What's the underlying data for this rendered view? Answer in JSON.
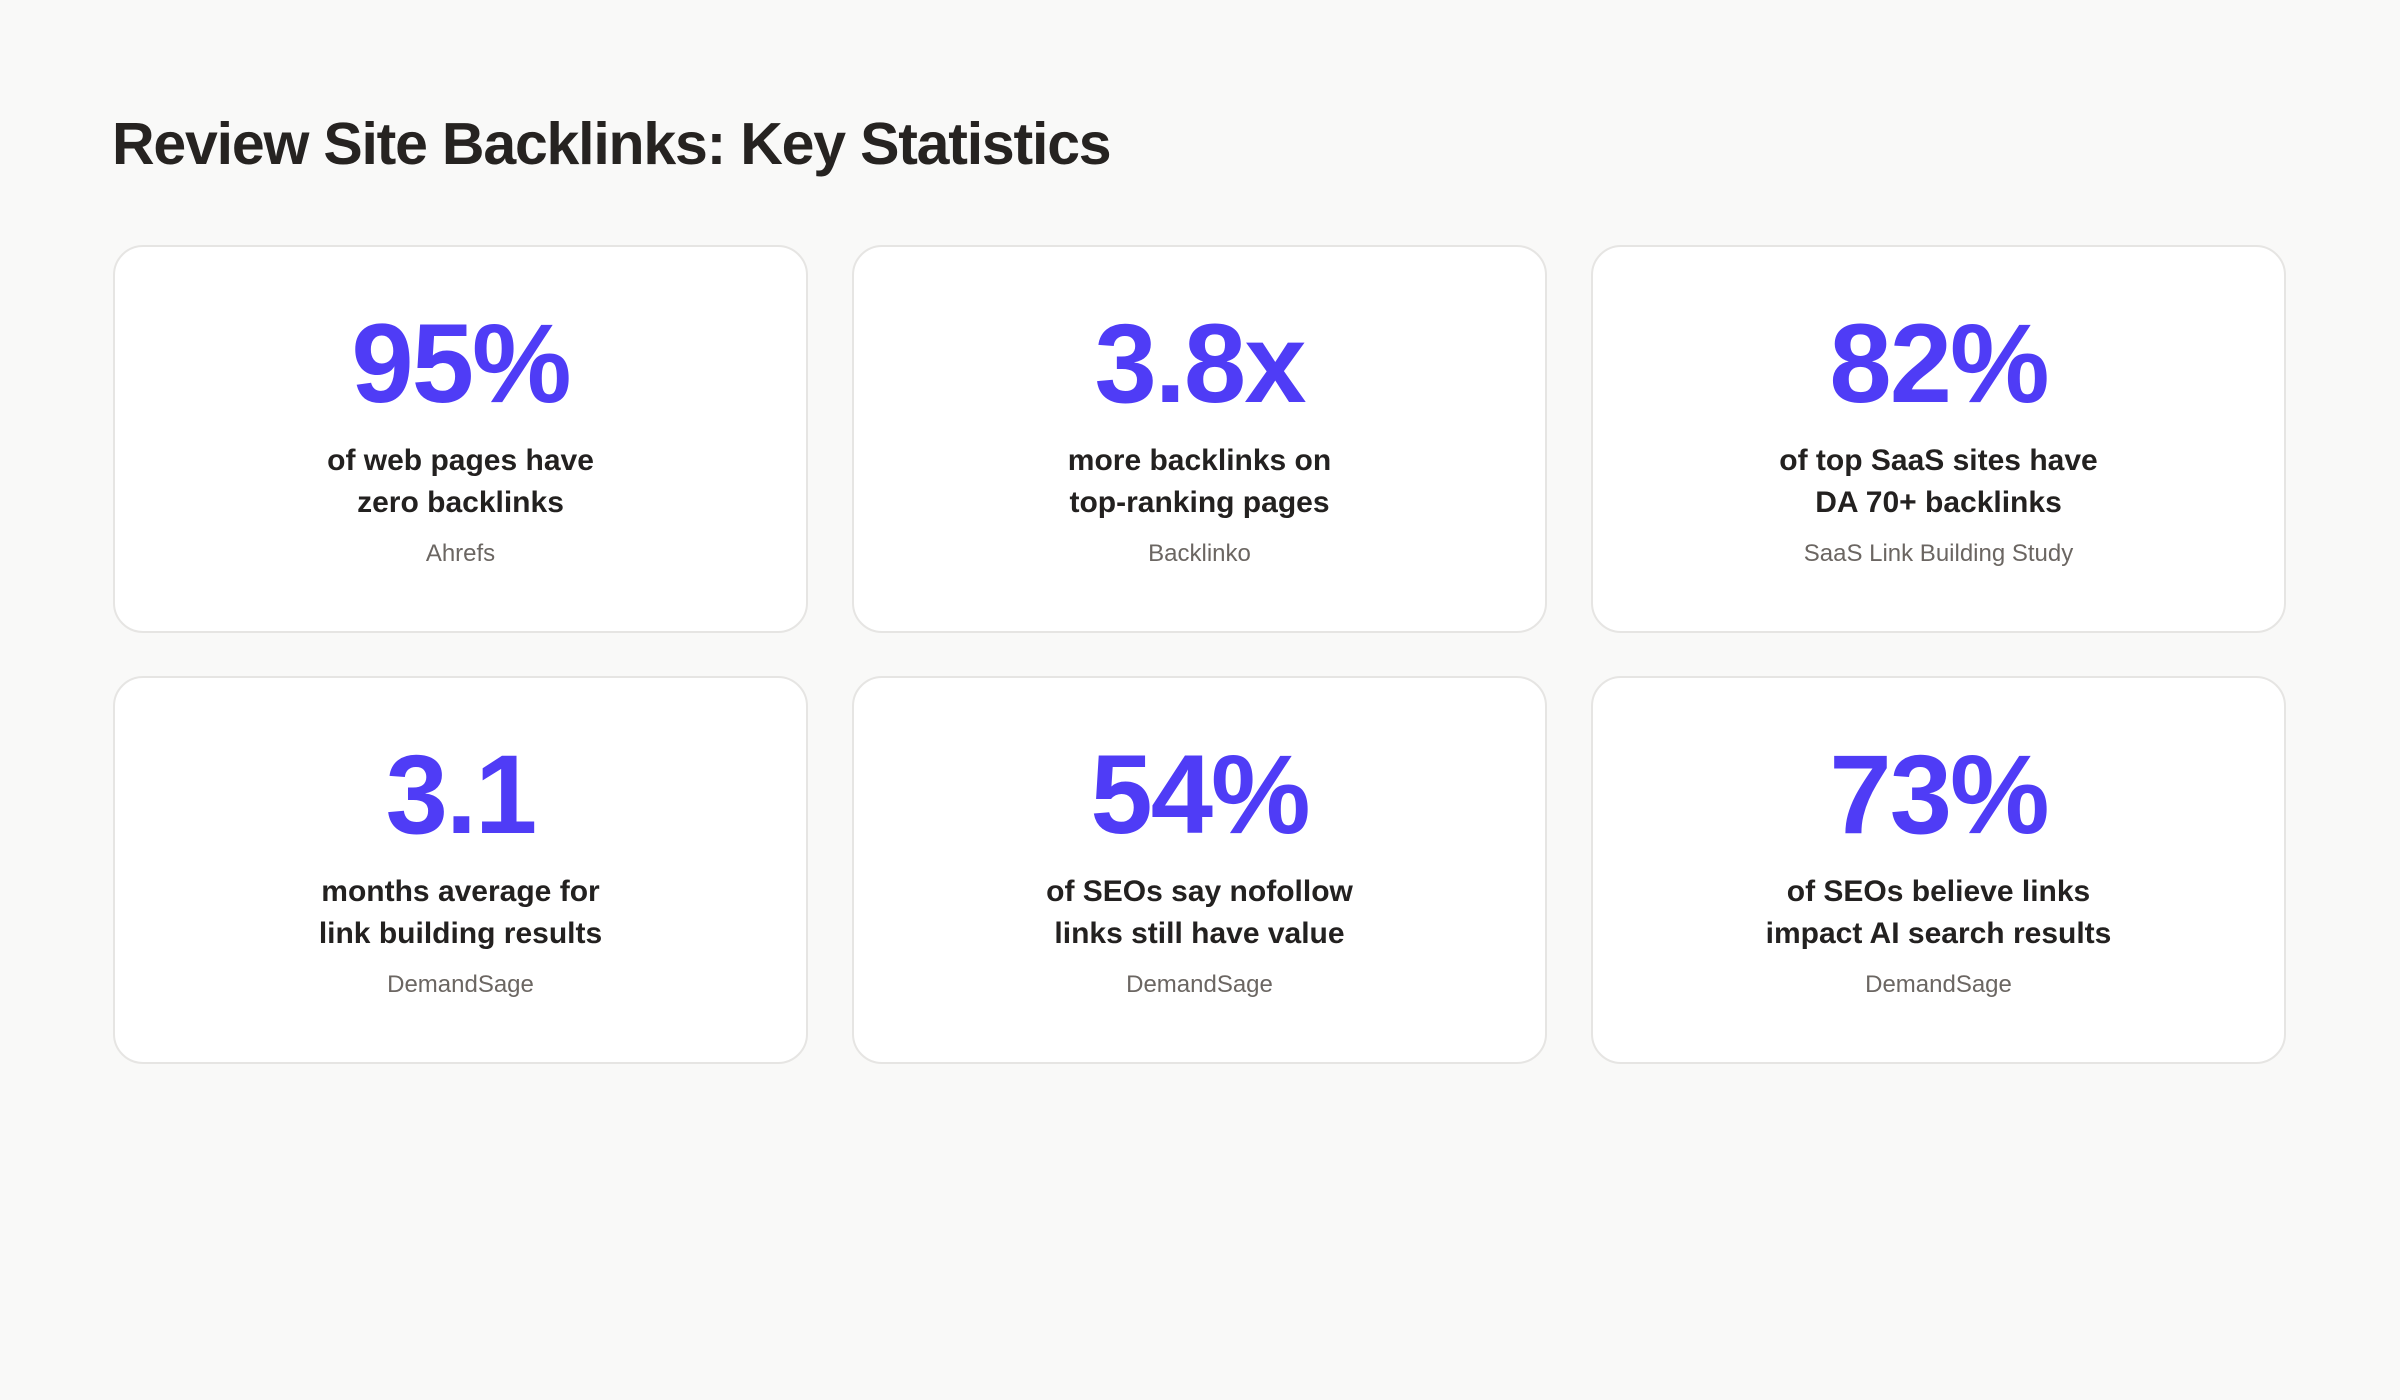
{
  "page": {
    "title": "Review Site Backlinks: Key Statistics"
  },
  "colors": {
    "accent": "#4f3cf6",
    "background": "#f9f9f8",
    "card": "#ffffff",
    "card_border": "#e6e5e3",
    "text": "#232120",
    "muted": "#6b6662"
  },
  "stats": [
    {
      "value": "95%",
      "description_lines": [
        "of web pages have",
        "zero backlinks"
      ],
      "source": "Ahrefs"
    },
    {
      "value": "3.8x",
      "description_lines": [
        "more backlinks on",
        "top-ranking pages"
      ],
      "source": "Backlinko"
    },
    {
      "value": "82%",
      "description_lines": [
        "of top SaaS sites have",
        "DA 70+ backlinks"
      ],
      "source": "SaaS Link Building Study"
    },
    {
      "value": "3.1",
      "description_lines": [
        "months average for",
        "link building results"
      ],
      "source": "DemandSage"
    },
    {
      "value": "54%",
      "description_lines": [
        "of SEOs say nofollow",
        "links still have value"
      ],
      "source": "DemandSage"
    },
    {
      "value": "73%",
      "description_lines": [
        "of SEOs believe links",
        "impact AI search results"
      ],
      "source": "DemandSage"
    }
  ]
}
